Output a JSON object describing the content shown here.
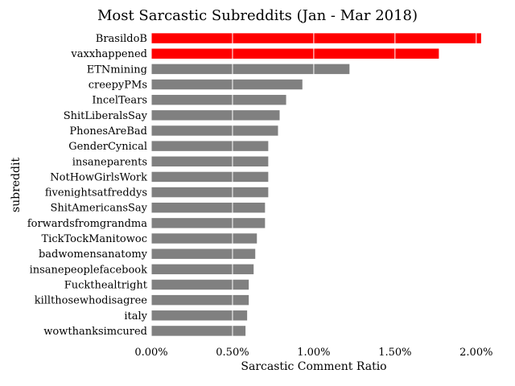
{
  "chart_data": {
    "type": "bar",
    "orientation": "horizontal",
    "title": "Most Sarcastic Subreddits (Jan - Mar 2018)",
    "xlabel": "Sarcastic Comment Ratio",
    "ylabel": "subreddit",
    "xlim": [
      0,
      2.1
    ],
    "x_ticks": [
      0,
      0.5,
      1.0,
      1.5,
      2.0
    ],
    "x_tick_labels": [
      "0.00%",
      "0.50%",
      "1.00%",
      "1.50%",
      "2.00%"
    ],
    "grid": "vertical white lines over bars",
    "categories": [
      "BrasildoB",
      "vaxxhappened",
      "ETNmining",
      "creepyPMs",
      "IncelTears",
      "ShitLiberalsSay",
      "PhonesAreBad",
      "GenderCynical",
      "insaneparents",
      "NotHowGirlsWork",
      "fivenightsatfreddys",
      "ShitAmericansSay",
      "forwardsfromgrandma",
      "TickTockManitowoc",
      "badwomensanatomy",
      "insanepeoplefacebook",
      "Fuckthealtright",
      "killthosewhodisagree",
      "italy",
      "wowthanksimcured"
    ],
    "values": [
      2.03,
      1.77,
      1.22,
      0.93,
      0.83,
      0.79,
      0.78,
      0.72,
      0.72,
      0.72,
      0.72,
      0.7,
      0.7,
      0.65,
      0.64,
      0.63,
      0.6,
      0.6,
      0.59,
      0.58
    ],
    "colors": [
      "#ff0000",
      "#ff0000",
      "#808080",
      "#808080",
      "#808080",
      "#808080",
      "#808080",
      "#808080",
      "#808080",
      "#808080",
      "#808080",
      "#808080",
      "#808080",
      "#808080",
      "#808080",
      "#808080",
      "#808080",
      "#808080",
      "#808080",
      "#808080"
    ]
  }
}
